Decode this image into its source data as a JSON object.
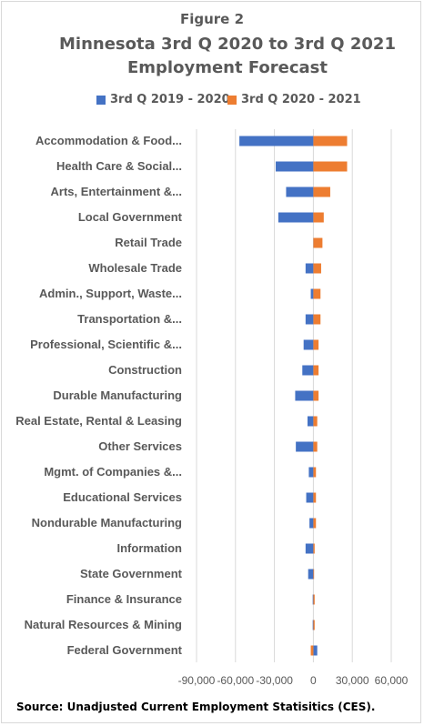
{
  "figure_label": "Figure 2",
  "source": "Source: Unadjusted Current Employment Statisitics (CES).",
  "colors": {
    "series_2019_2020": "#4472C4",
    "series_2020_2021": "#ED7D31",
    "text": "#595959",
    "grid": "#d9d9d9"
  },
  "chart_data": {
    "type": "bar",
    "orientation": "horizontal",
    "title_lines": [
      "Minnesota 3rd Q 2020 to 3rd Q 2021",
      "Employment Forecast"
    ],
    "categories": [
      "Accommodation & Food...",
      "Health Care & Social...",
      "Arts, Entertainment &...",
      "Local Government",
      "Retail Trade",
      "Wholesale Trade",
      "Admin., Support, Waste...",
      "Transportation &...",
      "Professional, Scientific &...",
      "Construction",
      "Durable Manufacturing",
      "Real Estate, Rental & Leasing",
      "Other Services",
      "Mgmt. of Companies &...",
      "Educational Services",
      "Nondurable Manufacturing",
      "Information",
      "State Government",
      "Finance & Insurance",
      "Natural Resources & Mining",
      "Federal Government"
    ],
    "series": [
      {
        "name": "3rd Q 2019 - 2020",
        "values": [
          -57000,
          -29000,
          -21000,
          -27000,
          1000,
          -6000,
          -2000,
          -6000,
          -7500,
          -8500,
          -14000,
          -4500,
          -13500,
          -3500,
          -5500,
          -3000,
          -6000,
          -4000,
          -500,
          -500,
          3000
        ]
      },
      {
        "name": "3rd Q 2020 - 2021",
        "values": [
          26000,
          26000,
          13000,
          8000,
          7000,
          6000,
          5500,
          5500,
          4000,
          4000,
          4000,
          3000,
          3000,
          2000,
          2000,
          2000,
          1000,
          500,
          1000,
          1000,
          -2000
        ]
      }
    ],
    "xlim": [
      -90000,
      60000
    ],
    "xticks": [
      -90000,
      -60000,
      -30000,
      0,
      30000,
      60000
    ],
    "xtick_labels": [
      "-90,000",
      "-60,000",
      "-30,000",
      "0",
      "30,000",
      "60,000"
    ],
    "grid": true,
    "legend": "top"
  }
}
